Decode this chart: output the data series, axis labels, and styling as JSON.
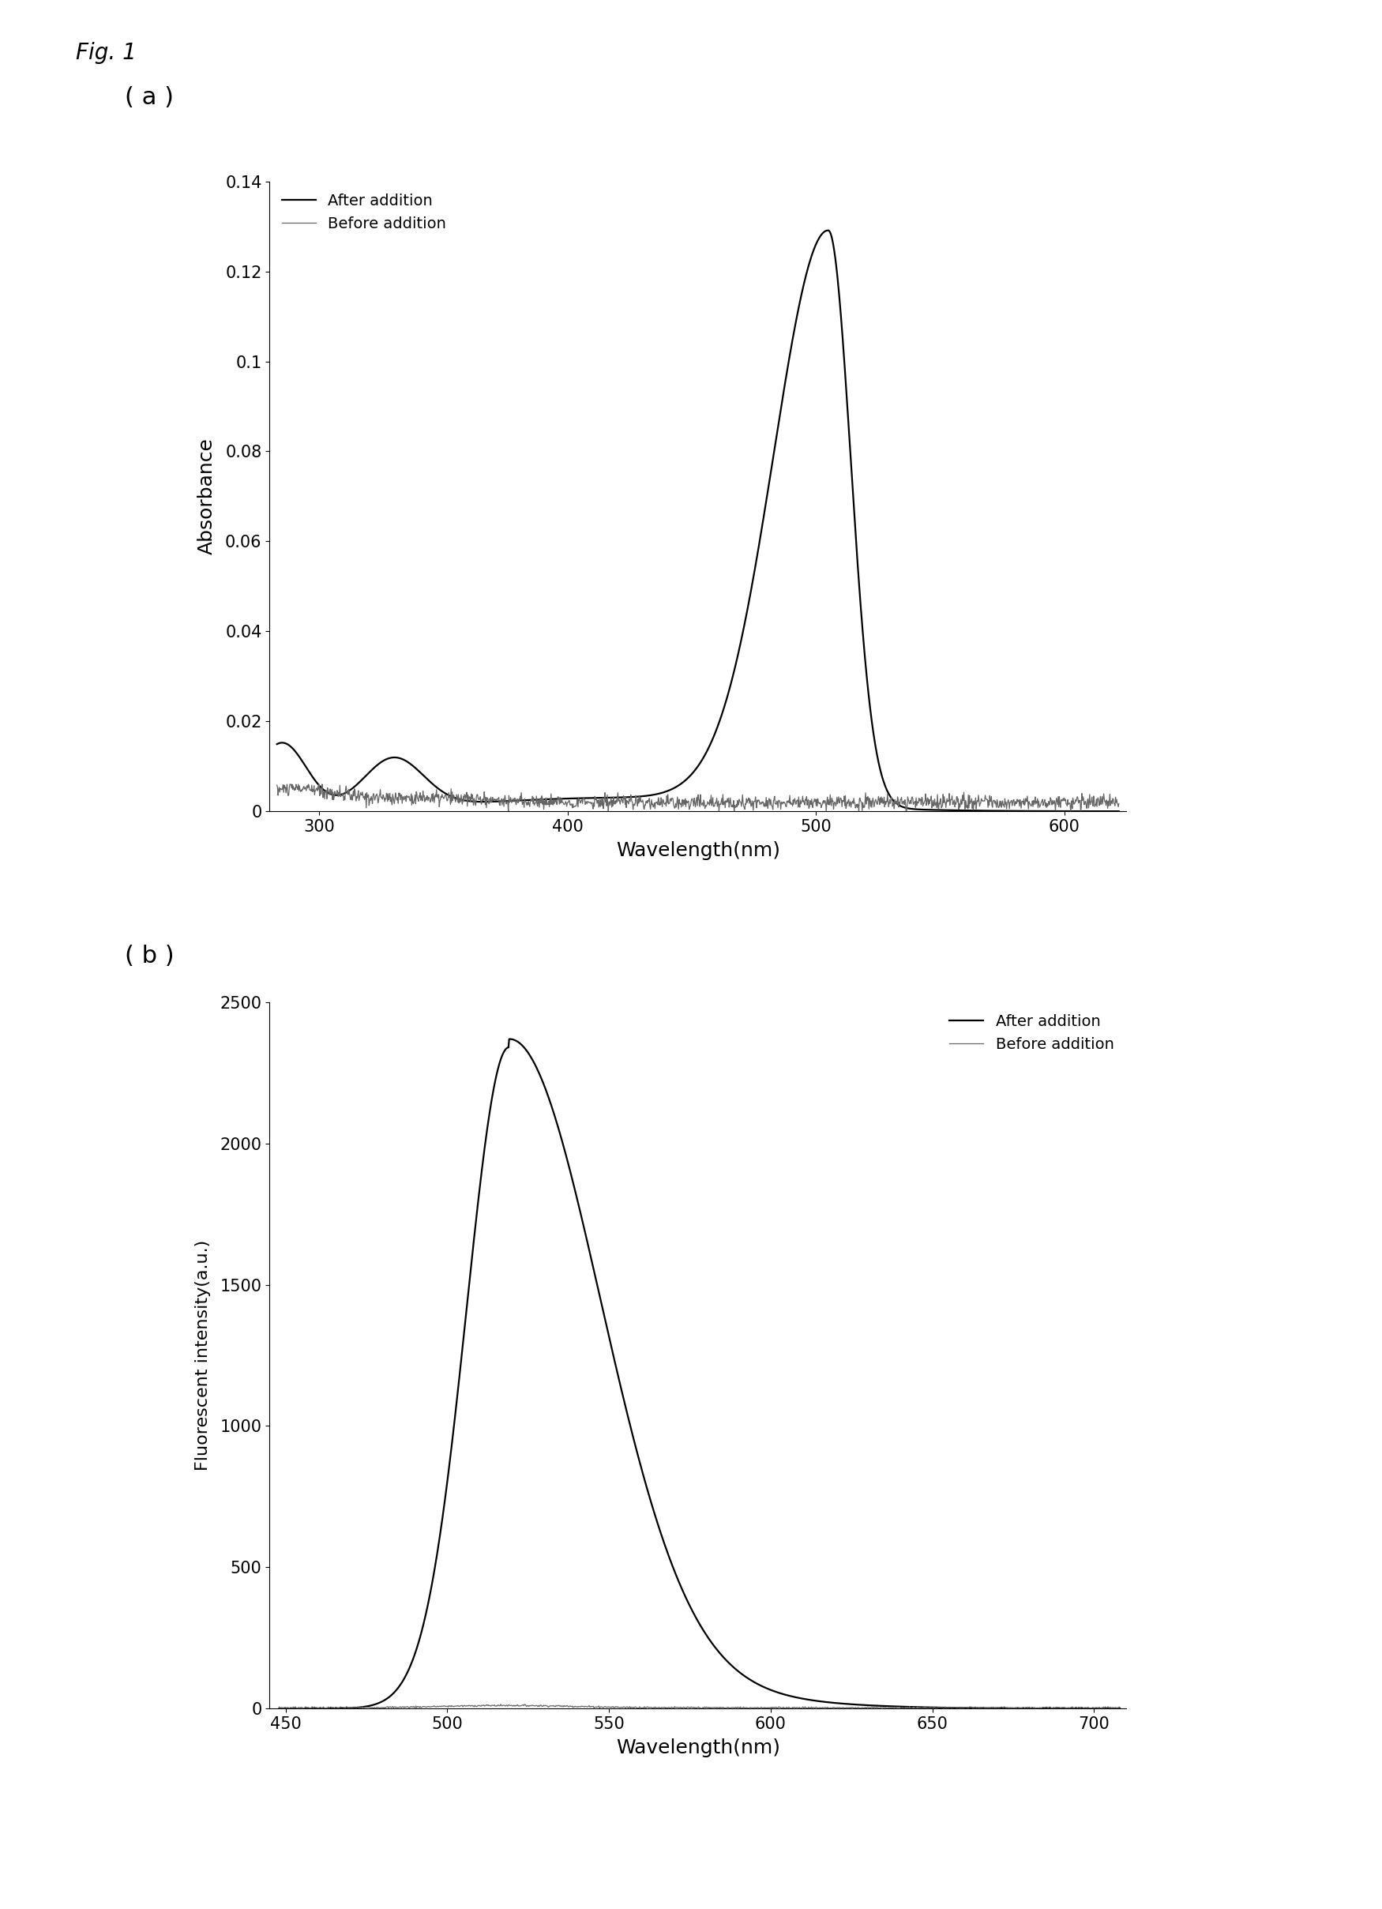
{
  "fig_label": "Fig. 1",
  "panel_a_label": "( a )",
  "panel_b_label": "( b )",
  "panel_a": {
    "xlabel": "Wavelength(nm)",
    "ylabel": "Absorbance",
    "xlim": [
      280,
      625
    ],
    "ylim": [
      0,
      0.14
    ],
    "xticks": [
      300,
      400,
      500,
      600
    ],
    "yticks": [
      0,
      0.02,
      0.04,
      0.06,
      0.08,
      0.1,
      0.12,
      0.14
    ],
    "legend_after": "After addition",
    "legend_before": "Before addition",
    "after_color": "#000000",
    "before_color": "#666666",
    "after_linewidth": 1.6,
    "before_linewidth": 0.9
  },
  "panel_b": {
    "xlabel": "Wavelength(nm)",
    "ylabel": "Fluorescent intensity(a.u.)",
    "xlim": [
      445,
      710
    ],
    "ylim": [
      0,
      2500
    ],
    "xticks": [
      450,
      500,
      550,
      600,
      650,
      700
    ],
    "yticks": [
      0,
      500,
      1000,
      1500,
      2000,
      2500
    ],
    "legend_after": "After addition",
    "legend_before": "Before addition",
    "after_color": "#000000",
    "before_color": "#666666",
    "after_linewidth": 1.6,
    "before_linewidth": 0.9
  }
}
